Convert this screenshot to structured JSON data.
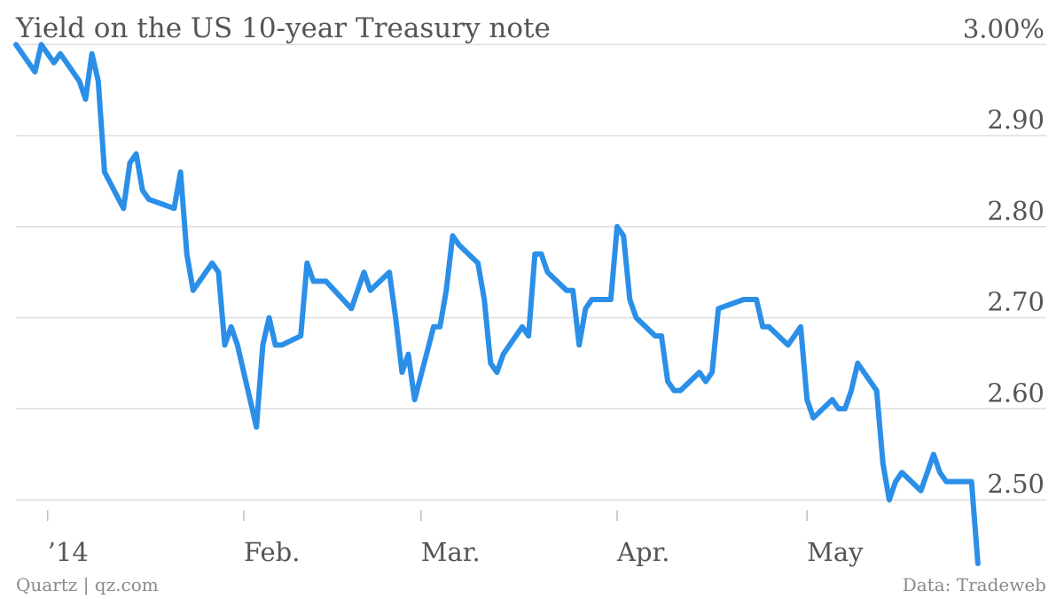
{
  "chart_data": {
    "type": "line",
    "title": "Yield on the US 10-year Treasury note",
    "source": "Data: Tradeweb",
    "credit": "Quartz | qz.com",
    "ylim": [
      2.43,
      3.01
    ],
    "y_ticks": [
      {
        "value": 3.0,
        "label": "3.00%"
      },
      {
        "value": 2.9,
        "label": "2.90"
      },
      {
        "value": 2.8,
        "label": "2.80"
      },
      {
        "value": 2.7,
        "label": "2.70"
      },
      {
        "value": 2.6,
        "label": "2.60"
      },
      {
        "value": 2.5,
        "label": "2.50"
      }
    ],
    "xlim": [
      "2013-12-27",
      "2014-05-29"
    ],
    "x_ticks": [
      {
        "date": "2014-01-01",
        "label": "’14"
      },
      {
        "date": "2014-02-01",
        "label": "Feb."
      },
      {
        "date": "2014-03-01",
        "label": "Mar."
      },
      {
        "date": "2014-04-01",
        "label": "Apr."
      },
      {
        "date": "2014-05-01",
        "label": "May"
      }
    ],
    "grid": true,
    "color": "#2b8fe8",
    "series": [
      {
        "x": [
          "2013-12-27",
          "2013-12-30",
          "2013-12-31",
          "2014-01-02",
          "2014-01-03",
          "2014-01-06",
          "2014-01-07",
          "2014-01-08",
          "2014-01-09",
          "2014-01-10",
          "2014-01-13",
          "2014-01-14",
          "2014-01-15",
          "2014-01-16",
          "2014-01-17",
          "2014-01-21",
          "2014-01-22",
          "2014-01-23",
          "2014-01-24",
          "2014-01-27",
          "2014-01-28",
          "2014-01-29",
          "2014-01-30",
          "2014-01-31",
          "2014-02-03",
          "2014-02-04",
          "2014-02-05",
          "2014-02-06",
          "2014-02-07",
          "2014-02-10",
          "2014-02-11",
          "2014-02-12",
          "2014-02-13",
          "2014-02-14",
          "2014-02-18",
          "2014-02-19",
          "2014-02-20",
          "2014-02-21",
          "2014-02-24",
          "2014-02-25",
          "2014-02-26",
          "2014-02-27",
          "2014-02-28",
          "2014-03-03",
          "2014-03-04",
          "2014-03-05",
          "2014-03-06",
          "2014-03-07",
          "2014-03-10",
          "2014-03-11",
          "2014-03-12",
          "2014-03-13",
          "2014-03-14",
          "2014-03-17",
          "2014-03-18",
          "2014-03-19",
          "2014-03-20",
          "2014-03-21",
          "2014-03-24",
          "2014-03-25",
          "2014-03-26",
          "2014-03-27",
          "2014-03-28",
          "2014-03-31",
          "2014-04-01",
          "2014-04-02",
          "2014-04-03",
          "2014-04-04",
          "2014-04-07",
          "2014-04-08",
          "2014-04-09",
          "2014-04-10",
          "2014-04-11",
          "2014-04-14",
          "2014-04-15",
          "2014-04-16",
          "2014-04-17",
          "2014-04-21",
          "2014-04-22",
          "2014-04-23",
          "2014-04-24",
          "2014-04-25",
          "2014-04-28",
          "2014-04-29",
          "2014-04-30",
          "2014-05-01",
          "2014-05-02",
          "2014-05-05",
          "2014-05-06",
          "2014-05-07",
          "2014-05-08",
          "2014-05-09",
          "2014-05-12",
          "2014-05-13",
          "2014-05-14",
          "2014-05-15",
          "2014-05-16",
          "2014-05-19",
          "2014-05-20",
          "2014-05-21",
          "2014-05-22",
          "2014-05-23",
          "2014-05-27",
          "2014-05-28"
        ],
        "y": [
          3.0,
          2.97,
          3.0,
          2.98,
          2.99,
          2.96,
          2.94,
          2.99,
          2.96,
          2.86,
          2.82,
          2.87,
          2.88,
          2.84,
          2.83,
          2.82,
          2.86,
          2.77,
          2.73,
          2.76,
          2.75,
          2.67,
          2.69,
          2.67,
          2.58,
          2.67,
          2.7,
          2.67,
          2.67,
          2.68,
          2.76,
          2.74,
          2.74,
          2.74,
          2.71,
          2.73,
          2.75,
          2.73,
          2.75,
          2.7,
          2.64,
          2.66,
          2.61,
          2.69,
          2.69,
          2.73,
          2.79,
          2.78,
          2.76,
          2.72,
          2.65,
          2.64,
          2.66,
          2.69,
          2.68,
          2.77,
          2.77,
          2.75,
          2.73,
          2.73,
          2.67,
          2.71,
          2.72,
          2.72,
          2.8,
          2.79,
          2.72,
          2.7,
          2.68,
          2.68,
          2.63,
          2.62,
          2.62,
          2.64,
          2.63,
          2.64,
          2.71,
          2.72,
          2.72,
          2.72,
          2.69,
          2.69,
          2.67,
          2.68,
          2.69,
          2.61,
          2.59,
          2.61,
          2.6,
          2.6,
          2.62,
          2.65,
          2.62,
          2.54,
          2.5,
          2.52,
          2.53,
          2.51,
          2.53,
          2.55,
          2.53,
          2.52,
          2.52,
          2.43
        ]
      }
    ]
  }
}
